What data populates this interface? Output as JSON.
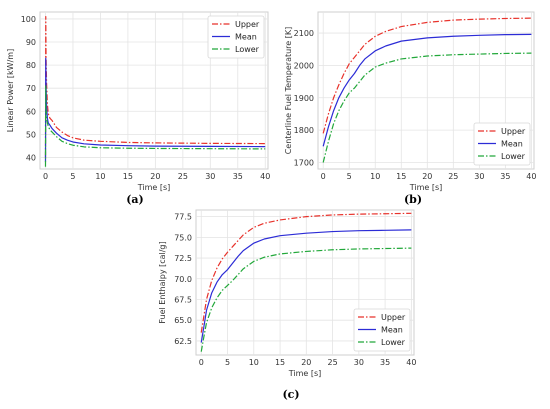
{
  "chart_data": [
    {
      "type": "line",
      "panel": "a",
      "caption": "(a)",
      "xlabel": "Time [s]",
      "ylabel": "Linear Power [kW/m]",
      "xlim": [
        -1,
        40.5
      ],
      "ylim": [
        35,
        103
      ],
      "xticks": [
        0,
        5,
        10,
        15,
        20,
        25,
        30,
        35,
        40
      ],
      "yticks": [
        40,
        50,
        60,
        70,
        80,
        90,
        100
      ],
      "grid": true,
      "legend_position": "top-right",
      "series": [
        {
          "name": "Upper",
          "color": "#e8322b",
          "dash": "6,2,1.5,2",
          "x": [
            0,
            0.05,
            0.1,
            0.2,
            0.35,
            0.5,
            0.8,
            1.2,
            2,
            3,
            4,
            5,
            7,
            10,
            15,
            20,
            30,
            40
          ],
          "y": [
            40,
            101,
            84,
            72,
            63,
            59,
            57,
            56,
            53,
            51,
            49.5,
            48.5,
            47.5,
            47,
            46.5,
            46.3,
            46.1,
            46
          ]
        },
        {
          "name": "Mean",
          "color": "#2c2cd6",
          "dash": "",
          "x": [
            0,
            0.05,
            0.1,
            0.2,
            0.35,
            0.5,
            0.8,
            1.2,
            2,
            3,
            4,
            5,
            7,
            10,
            15,
            20,
            30,
            40
          ],
          "y": [
            38,
            83,
            72,
            62,
            57,
            55,
            54,
            52.5,
            50.5,
            48.5,
            47.5,
            46.7,
            45.9,
            45.4,
            45.1,
            44.9,
            44.8,
            44.7
          ]
        },
        {
          "name": "Lower",
          "color": "#22a83a",
          "dash": "6,2,1.5,2",
          "x": [
            0,
            0.05,
            0.1,
            0.2,
            0.35,
            0.5,
            0.8,
            1.2,
            2,
            3,
            4,
            5,
            7,
            10,
            15,
            20,
            30,
            40
          ],
          "y": [
            36,
            71,
            62,
            57,
            55,
            53.5,
            52,
            51,
            49,
            47,
            46,
            45.3,
            44.6,
            44.2,
            44,
            43.9,
            43.8,
            43.7
          ]
        }
      ]
    },
    {
      "type": "line",
      "panel": "b",
      "caption": "(b)",
      "xlabel": "Time [s]",
      "ylabel": "Centerline Fuel Temperature [K]",
      "xlim": [
        -1,
        40.5
      ],
      "ylim": [
        1680,
        2165
      ],
      "xticks": [
        0,
        5,
        10,
        15,
        20,
        25,
        30,
        35,
        40
      ],
      "yticks": [
        1700,
        1800,
        1900,
        2000,
        2100
      ],
      "grid": true,
      "legend_position": "bottom-right",
      "series": [
        {
          "name": "Upper",
          "color": "#e8322b",
          "dash": "6,2,1.5,2",
          "x": [
            0,
            1,
            2,
            3,
            4,
            5,
            6,
            7,
            8,
            10,
            12,
            15,
            20,
            25,
            30,
            35,
            40
          ],
          "y": [
            1790,
            1850,
            1900,
            1940,
            1975,
            2005,
            2025,
            2045,
            2065,
            2090,
            2105,
            2120,
            2133,
            2140,
            2143,
            2145,
            2146
          ]
        },
        {
          "name": "Mean",
          "color": "#2c2cd6",
          "dash": "",
          "x": [
            0,
            1,
            2,
            3,
            4,
            5,
            6,
            7,
            8,
            10,
            12,
            15,
            20,
            25,
            30,
            35,
            40
          ],
          "y": [
            1750,
            1810,
            1860,
            1900,
            1930,
            1955,
            1975,
            2000,
            2020,
            2045,
            2060,
            2075,
            2085,
            2090,
            2093,
            2095,
            2096
          ]
        },
        {
          "name": "Lower",
          "color": "#22a83a",
          "dash": "6,2,1.5,2",
          "x": [
            0,
            1,
            2,
            3,
            4,
            5,
            6,
            7,
            8,
            10,
            12,
            15,
            20,
            25,
            30,
            35,
            40
          ],
          "y": [
            1700,
            1765,
            1820,
            1860,
            1890,
            1915,
            1930,
            1950,
            1970,
            1995,
            2007,
            2020,
            2029,
            2033,
            2035,
            2037,
            2038
          ]
        }
      ]
    },
    {
      "type": "line",
      "panel": "c",
      "caption": "(c)",
      "xlabel": "Time [s]",
      "ylabel": "Fuel Enthalpy [cal/g]",
      "xlim": [
        -1,
        40.5
      ],
      "ylim": [
        60.8,
        78.3
      ],
      "xticks": [
        0,
        5,
        10,
        15,
        20,
        25,
        30,
        35,
        40
      ],
      "yticks": [
        62.5,
        65.0,
        67.5,
        70.0,
        72.5,
        75.0,
        77.5
      ],
      "ytick_labels": [
        "62.5",
        "65.0",
        "67.5",
        "70.0",
        "72.5",
        "75.0",
        "77.5"
      ],
      "grid": true,
      "legend_position": "bottom-right",
      "series": [
        {
          "name": "Upper",
          "color": "#e8322b",
          "dash": "6,2,1.5,2",
          "x": [
            0,
            0.5,
            1,
            2,
            3,
            4,
            5,
            6,
            7,
            8,
            10,
            12,
            15,
            20,
            25,
            30,
            35,
            40
          ],
          "y": [
            63.5,
            65.5,
            67.5,
            69.8,
            71.3,
            72.4,
            73.2,
            73.9,
            74.6,
            75.3,
            76.2,
            76.7,
            77.1,
            77.5,
            77.7,
            77.8,
            77.85,
            77.9
          ]
        },
        {
          "name": "Mean",
          "color": "#2c2cd6",
          "dash": "",
          "x": [
            0,
            0.5,
            1,
            2,
            3,
            4,
            5,
            6,
            7,
            8,
            10,
            12,
            15,
            20,
            25,
            30,
            35,
            40
          ],
          "y": [
            62.3,
            64.2,
            66.2,
            68.3,
            69.6,
            70.5,
            71.1,
            71.9,
            72.7,
            73.4,
            74.3,
            74.8,
            75.2,
            75.5,
            75.7,
            75.8,
            75.85,
            75.9
          ]
        },
        {
          "name": "Lower",
          "color": "#22a83a",
          "dash": "6,2,1.5,2",
          "x": [
            0,
            0.5,
            1,
            2,
            3,
            4,
            5,
            6,
            7,
            8,
            10,
            12,
            15,
            20,
            25,
            30,
            35,
            40
          ],
          "y": [
            61.2,
            63.0,
            64.7,
            66.5,
            67.7,
            68.6,
            69.2,
            69.8,
            70.5,
            71.2,
            72.1,
            72.6,
            73.0,
            73.3,
            73.5,
            73.6,
            73.65,
            73.7
          ]
        }
      ]
    }
  ]
}
